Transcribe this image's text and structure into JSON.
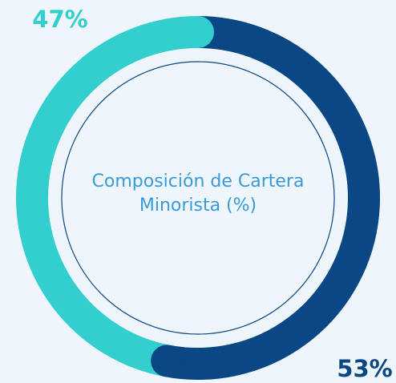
{
  "chart_data": {
    "type": "donut",
    "title": "Composición de Cartera Minorista (%)",
    "values": [
      53,
      47
    ],
    "value_labels": [
      "53%",
      "47%"
    ],
    "colors": [
      "#0b4685",
      "#33cfcf"
    ]
  }
}
